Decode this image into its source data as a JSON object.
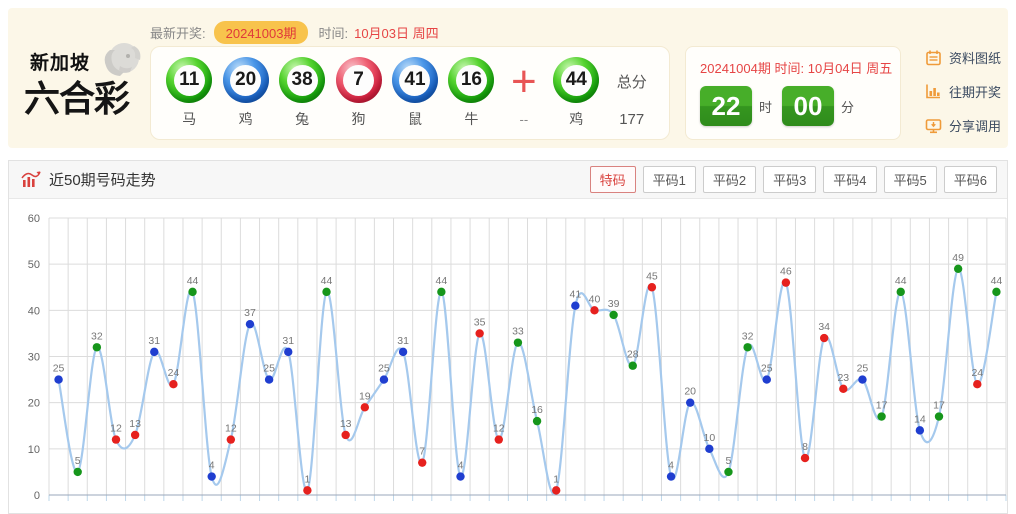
{
  "header": {
    "logo": {
      "line1": "新加坡",
      "line2": "六合彩"
    },
    "latest_label": "最新开奖:",
    "latest_issue": "20241003期",
    "time_label": "时间:",
    "latest_date": "10月03日 周四",
    "balls": [
      {
        "number": "11",
        "color": "green",
        "zodiac": "马"
      },
      {
        "number": "20",
        "color": "blue",
        "zodiac": "鸡"
      },
      {
        "number": "38",
        "color": "green",
        "zodiac": "兔"
      },
      {
        "number": "7",
        "color": "red",
        "zodiac": "狗"
      },
      {
        "number": "41",
        "color": "blue",
        "zodiac": "鼠"
      },
      {
        "number": "16",
        "color": "green",
        "zodiac": "牛"
      }
    ],
    "plus_sign": "+",
    "plus_sub": "--",
    "special_ball": {
      "number": "44",
      "color": "green",
      "zodiac": "鸡"
    },
    "total_label": "总分",
    "total_value": "177",
    "next_draw": {
      "issue": "20241004期",
      "time_label": "时间:",
      "date": "10月04日 周五",
      "hour": "22",
      "hour_unit": "时",
      "minute": "00",
      "minute_unit": "分"
    },
    "links": [
      {
        "label": "资料图纸",
        "icon": "notebook-icon"
      },
      {
        "label": "往期开奖",
        "icon": "bar-chart-icon"
      },
      {
        "label": "分享调用",
        "icon": "share-icon"
      }
    ]
  },
  "chart_panel": {
    "title": "近50期号码走势",
    "tabs": [
      {
        "label": "特码",
        "active": true
      },
      {
        "label": "平码1",
        "active": false
      },
      {
        "label": "平码2",
        "active": false
      },
      {
        "label": "平码3",
        "active": false
      },
      {
        "label": "平码4",
        "active": false
      },
      {
        "label": "平码5",
        "active": false
      },
      {
        "label": "平码6",
        "active": false
      }
    ]
  },
  "chart_data": {
    "type": "line",
    "title": "近50期号码走势",
    "values": [
      25,
      5,
      32,
      12,
      13,
      31,
      24,
      44,
      4,
      12,
      37,
      25,
      31,
      1,
      44,
      13,
      19,
      25,
      31,
      7,
      44,
      4,
      35,
      12,
      33,
      16,
      1,
      41,
      40,
      39,
      28,
      45,
      4,
      20,
      10,
      5,
      32,
      25,
      46,
      8,
      34,
      23,
      25,
      17,
      44,
      14,
      17,
      49,
      24,
      44
    ],
    "point_colors": [
      "blue",
      "green",
      "green",
      "red",
      "red",
      "blue",
      "red",
      "green",
      "blue",
      "red",
      "blue",
      "blue",
      "blue",
      "red",
      "green",
      "red",
      "red",
      "blue",
      "blue",
      "red",
      "green",
      "blue",
      "red",
      "red",
      "green",
      "green",
      "red",
      "blue",
      "red",
      "green",
      "green",
      "red",
      "blue",
      "blue",
      "blue",
      "green",
      "green",
      "blue",
      "red",
      "red",
      "red",
      "red",
      "blue",
      "green",
      "green",
      "blue",
      "green",
      "green",
      "red",
      "green"
    ],
    "ylim": [
      0,
      60
    ],
    "yticks": [
      0,
      10,
      20,
      30,
      40,
      50,
      60
    ],
    "grid": true,
    "legend": "none",
    "x_tick_labels": "none",
    "style": {
      "line_color": "#a5c9ed",
      "grid_color": "#dcdcdc",
      "axis_color": "#9aa7bb",
      "sub_tick_color": "#bed7ea",
      "label_color": "#777777",
      "ytick_color": "#666666",
      "dot_colors": {
        "red": "#e6211e",
        "blue": "#1f3ed0",
        "green": "#16961b"
      }
    }
  }
}
